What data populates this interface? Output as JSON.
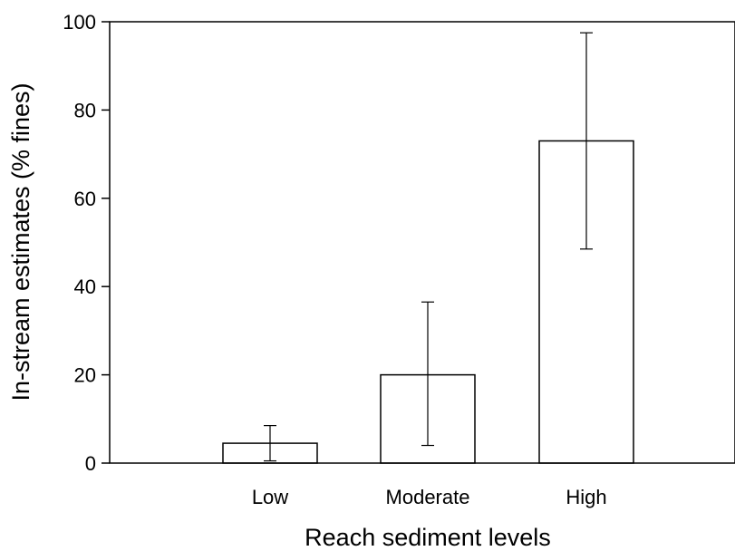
{
  "chart_data": {
    "type": "bar",
    "title": "",
    "xlabel": "Reach sediment levels",
    "ylabel": "In-stream estimates (% fines)",
    "categories": [
      "Low",
      "Moderate",
      "High"
    ],
    "values": [
      4.5,
      20.0,
      73.0
    ],
    "error_low": [
      0.5,
      4.0,
      48.5
    ],
    "error_high": [
      8.5,
      36.5,
      97.5
    ],
    "ylim": [
      0,
      100
    ],
    "yticks": [
      "0",
      "20",
      "40",
      "60",
      "80",
      "100"
    ],
    "grid": false,
    "legend": "none",
    "colors": {
      "bar_fill": "#ffffff",
      "stroke": "#000000"
    }
  }
}
